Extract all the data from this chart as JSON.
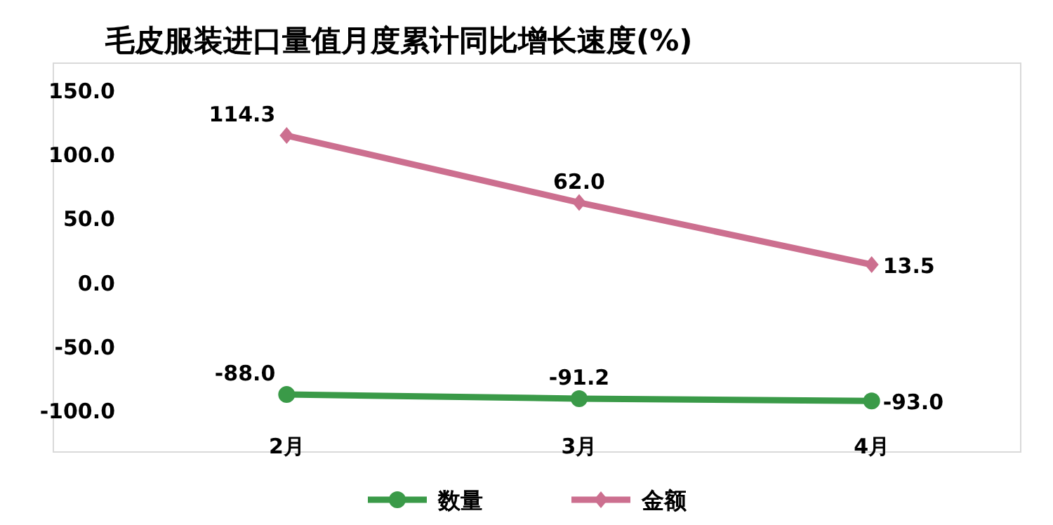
{
  "chart_data": {
    "type": "line",
    "title": "毛皮服装进口量值月度累计同比增长速度(%)",
    "categories": [
      "2月",
      "3月",
      "4月"
    ],
    "series": [
      {
        "name": "数量",
        "color": "#3a9a48",
        "values": [
          -88.0,
          -91.2,
          -93.0
        ],
        "value_labels": [
          "-88.0",
          "-91.2",
          "-93.0"
        ],
        "marker": "circle"
      },
      {
        "name": "金额",
        "color": "#cc6f8f",
        "values": [
          114.3,
          62.0,
          13.5
        ],
        "value_labels": [
          "114.3",
          "62.0",
          "13.5"
        ],
        "marker": "diamond"
      }
    ],
    "ylim": [
      -100,
      150
    ],
    "yticks": [
      {
        "value": -100,
        "label": "-100.0"
      },
      {
        "value": -50,
        "label": "-50.0"
      },
      {
        "value": 0,
        "label": "0.0"
      },
      {
        "value": 50,
        "label": "50.0"
      },
      {
        "value": 100,
        "label": "100.0"
      },
      {
        "value": 150,
        "label": "150.0"
      }
    ],
    "grid": false,
    "legend": "bottom",
    "line_style": "solid"
  }
}
